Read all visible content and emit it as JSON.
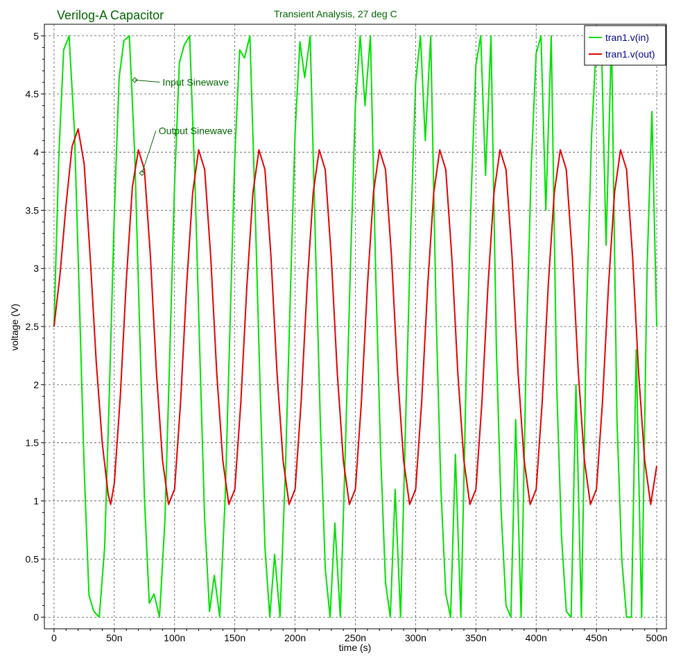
{
  "chart_data": {
    "type": "line",
    "title": "Verilog-A Capacitor",
    "subtitle": "Transient Analysis, 27 deg C",
    "xlabel": "time (s)",
    "ylabel": "voltage (V)",
    "xlim": [
      -8,
      508
    ],
    "ylim": [
      -0.1,
      5.1
    ],
    "x_ticks": [
      0,
      50,
      100,
      150,
      200,
      250,
      300,
      350,
      400,
      450,
      500
    ],
    "x_tick_labels": [
      "0",
      "50n",
      "100n",
      "150n",
      "200n",
      "250n",
      "300n",
      "350n",
      "400n",
      "450n",
      "500n"
    ],
    "y_ticks": [
      0,
      0.5,
      1,
      1.5,
      2,
      2.5,
      3,
      3.5,
      4,
      4.5,
      5
    ],
    "y_tick_labels": [
      "0",
      "0.5",
      "1",
      "1.5",
      "2",
      "2.5",
      "3",
      "3.5",
      "4",
      "4.5",
      "5"
    ],
    "grid": true,
    "legend_position": "top-right",
    "series": [
      {
        "name": "tran1.v(in)",
        "color": "#00e000",
        "x": [
          0,
          4,
          8,
          12.5,
          17,
          21,
          25,
          29,
          33,
          37.5,
          42,
          46,
          50,
          54,
          58,
          62.5,
          67,
          71,
          75,
          79,
          83,
          87.5,
          92,
          96,
          100,
          104,
          108,
          112.5,
          117,
          121,
          125,
          129,
          133,
          137.5,
          142,
          146,
          150,
          154,
          158,
          162.5,
          167,
          171,
          175,
          179,
          183,
          187.5,
          192,
          196,
          200,
          204,
          208,
          212.5,
          217,
          221,
          225,
          229,
          233,
          237.5,
          242,
          246,
          250,
          254,
          258,
          262.5,
          267,
          271,
          275,
          279,
          283,
          287.5,
          292,
          296,
          300,
          304,
          308,
          312.5,
          317,
          321,
          325,
          329,
          333,
          337.5,
          342,
          346,
          350,
          354,
          358,
          362.5,
          367,
          371,
          375,
          379,
          383,
          387.5,
          392,
          396,
          400,
          404,
          408,
          412.5,
          417,
          421,
          425,
          429,
          433,
          437.5,
          442,
          446,
          450,
          454,
          458,
          462.5,
          467,
          471,
          475,
          479,
          483,
          487.5,
          492,
          496,
          500
        ],
        "y": [
          2.5,
          3.97,
          4.88,
          5,
          4.17,
          2.75,
          1.28,
          0.19,
          0.05,
          0,
          0.6,
          1.96,
          3.46,
          4.64,
          4.96,
          5,
          3.97,
          2.5,
          1.03,
          0.12,
          0.2,
          0,
          0.83,
          2.25,
          3.72,
          4.77,
          4.92,
          5,
          3.72,
          2.25,
          0.83,
          0.05,
          0.36,
          0,
          1.03,
          2.5,
          3.97,
          4.88,
          4.81,
          5,
          3.46,
          1.96,
          0.6,
          0,
          0.54,
          0,
          1.28,
          2.75,
          4.17,
          4.95,
          4.64,
          5,
          3.17,
          1.66,
          0.42,
          0,
          0.81,
          0,
          1.55,
          3.05,
          4.4,
          5,
          4.4,
          5,
          2.9,
          1.4,
          0.3,
          0,
          1.1,
          0,
          1.8,
          3.35,
          4.6,
          5,
          4.1,
          5,
          2.6,
          1.1,
          0.2,
          0,
          1.4,
          0,
          2.1,
          3.6,
          4.75,
          5,
          3.8,
          5,
          2.3,
          0.9,
          0.1,
          0,
          1.7,
          0,
          2.4,
          3.9,
          4.85,
          5,
          3.5,
          5,
          2.0,
          0.7,
          0.05,
          0,
          2.0,
          0,
          2.7,
          4.15,
          4.95,
          5,
          3.2,
          5,
          1.7,
          0.5,
          0,
          0,
          2.3,
          0,
          3.0,
          4.35,
          2.5
        ]
      },
      {
        "name": "tran1.v(out)",
        "color": "#e00000",
        "x": [
          0,
          5,
          10,
          15,
          20,
          25,
          30,
          35,
          40,
          45,
          47,
          50,
          55,
          60,
          65,
          70,
          75,
          80,
          85,
          90,
          95,
          100,
          105,
          110,
          115,
          120,
          125,
          130,
          135,
          140,
          145,
          150,
          155,
          160,
          165,
          170,
          175,
          180,
          185,
          190,
          195,
          200,
          205,
          210,
          215,
          220,
          225,
          230,
          235,
          240,
          245,
          250,
          255,
          260,
          265,
          270,
          275,
          280,
          285,
          290,
          295,
          300,
          305,
          310,
          315,
          320,
          325,
          330,
          335,
          340,
          345,
          350,
          355,
          360,
          365,
          370,
          375,
          380,
          385,
          390,
          395,
          400,
          405,
          410,
          415,
          420,
          425,
          430,
          435,
          440,
          445,
          450,
          455,
          460,
          465,
          470,
          475,
          480,
          485,
          490,
          495,
          500
        ],
        "y": [
          2.5,
          2.95,
          3.55,
          4.05,
          4.2,
          3.9,
          3.1,
          2.2,
          1.5,
          1.05,
          0.97,
          1.15,
          1.9,
          2.9,
          3.7,
          4.02,
          3.85,
          3.1,
          2.1,
          1.35,
          0.97,
          1.1,
          1.85,
          2.85,
          3.65,
          4.02,
          3.85,
          3.1,
          2.1,
          1.35,
          0.97,
          1.1,
          1.85,
          2.85,
          3.65,
          4.02,
          3.85,
          3.1,
          2.1,
          1.35,
          0.97,
          1.1,
          1.85,
          2.85,
          3.65,
          4.02,
          3.85,
          3.1,
          2.1,
          1.35,
          0.97,
          1.1,
          1.85,
          2.85,
          3.65,
          4.02,
          3.85,
          3.1,
          2.1,
          1.35,
          0.97,
          1.1,
          1.85,
          2.85,
          3.65,
          4.02,
          3.85,
          3.1,
          2.1,
          1.35,
          0.97,
          1.1,
          1.85,
          2.85,
          3.65,
          4.02,
          3.85,
          3.1,
          2.1,
          1.35,
          0.97,
          1.1,
          1.85,
          2.85,
          3.65,
          4.02,
          3.85,
          3.1,
          2.1,
          1.35,
          0.97,
          1.1,
          1.85,
          2.85,
          3.65,
          4.02,
          3.85,
          3.1,
          2.1,
          1.35,
          0.97,
          1.3
        ]
      }
    ],
    "annotations": [
      {
        "text": "Input Sinewave",
        "x": 67,
        "y": 4.62
      },
      {
        "text": "Output Sinewave",
        "x": 73,
        "y": 3.82
      }
    ]
  },
  "colors": {
    "title": "#006400",
    "legend_text": "#00008b",
    "grid": "#555555",
    "frame": "#000000"
  }
}
